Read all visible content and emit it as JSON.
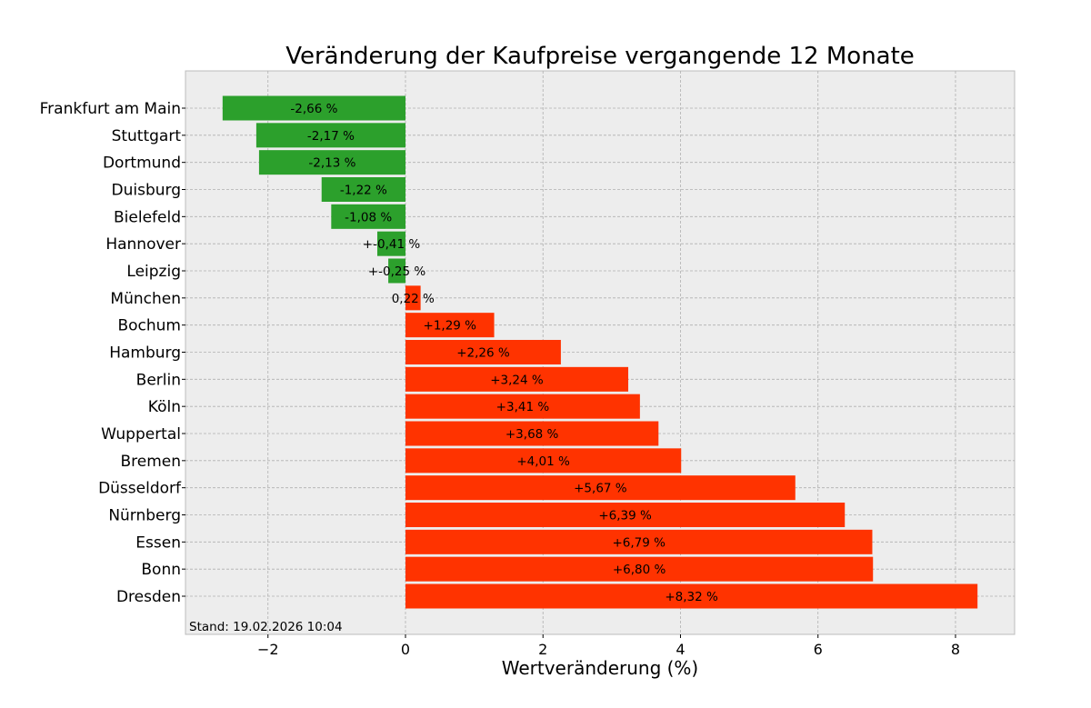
{
  "chart_data": {
    "type": "bar",
    "orientation": "horizontal",
    "title": "Veränderung der Kaufpreise vergangende 12 Monate",
    "xlabel": "Wertveränderung (%)",
    "ylabel": "",
    "xlim": [
      -3.2,
      8.86
    ],
    "xticks": [
      -2,
      0,
      2,
      4,
      6,
      8
    ],
    "xtick_labels": [
      "−2",
      "0",
      "2",
      "4",
      "6",
      "8"
    ],
    "grid": true,
    "categories": [
      "Frankfurt am Main",
      "Stuttgart",
      "Dortmund",
      "Duisburg",
      "Bielefeld",
      "Hannover",
      "Leipzig",
      "München",
      "Bochum",
      "Hamburg",
      "Berlin",
      "Köln",
      "Wuppertal",
      "Bremen",
      "Düsseldorf",
      "Nürnberg",
      "Essen",
      "Bonn",
      "Dresden"
    ],
    "values": [
      -2.66,
      -2.17,
      -2.13,
      -1.22,
      -1.08,
      -0.41,
      -0.25,
      0.22,
      1.29,
      2.26,
      3.24,
      3.41,
      3.68,
      4.01,
      5.67,
      6.39,
      6.79,
      6.8,
      8.32
    ],
    "data_labels": [
      "-2,66 %",
      "-2,17 %",
      "-2,13 %",
      "-1,22 %",
      "-1,08 %",
      "+-0,41 %",
      "+-0,25 %",
      "0,22 %",
      "+1,29 %",
      "+2,26 %",
      "+3,24 %",
      "+3,41 %",
      "+3,68 %",
      "+4,01 %",
      "+5,67 %",
      "+6,39 %",
      "+6,79 %",
      "+6,80 %",
      "+8,32 %"
    ],
    "colors": {
      "negative": "#2ca02c",
      "positive": "#ff3300",
      "background": "#ededed"
    },
    "annotation": "Stand: 19.02.2026 10:04"
  }
}
